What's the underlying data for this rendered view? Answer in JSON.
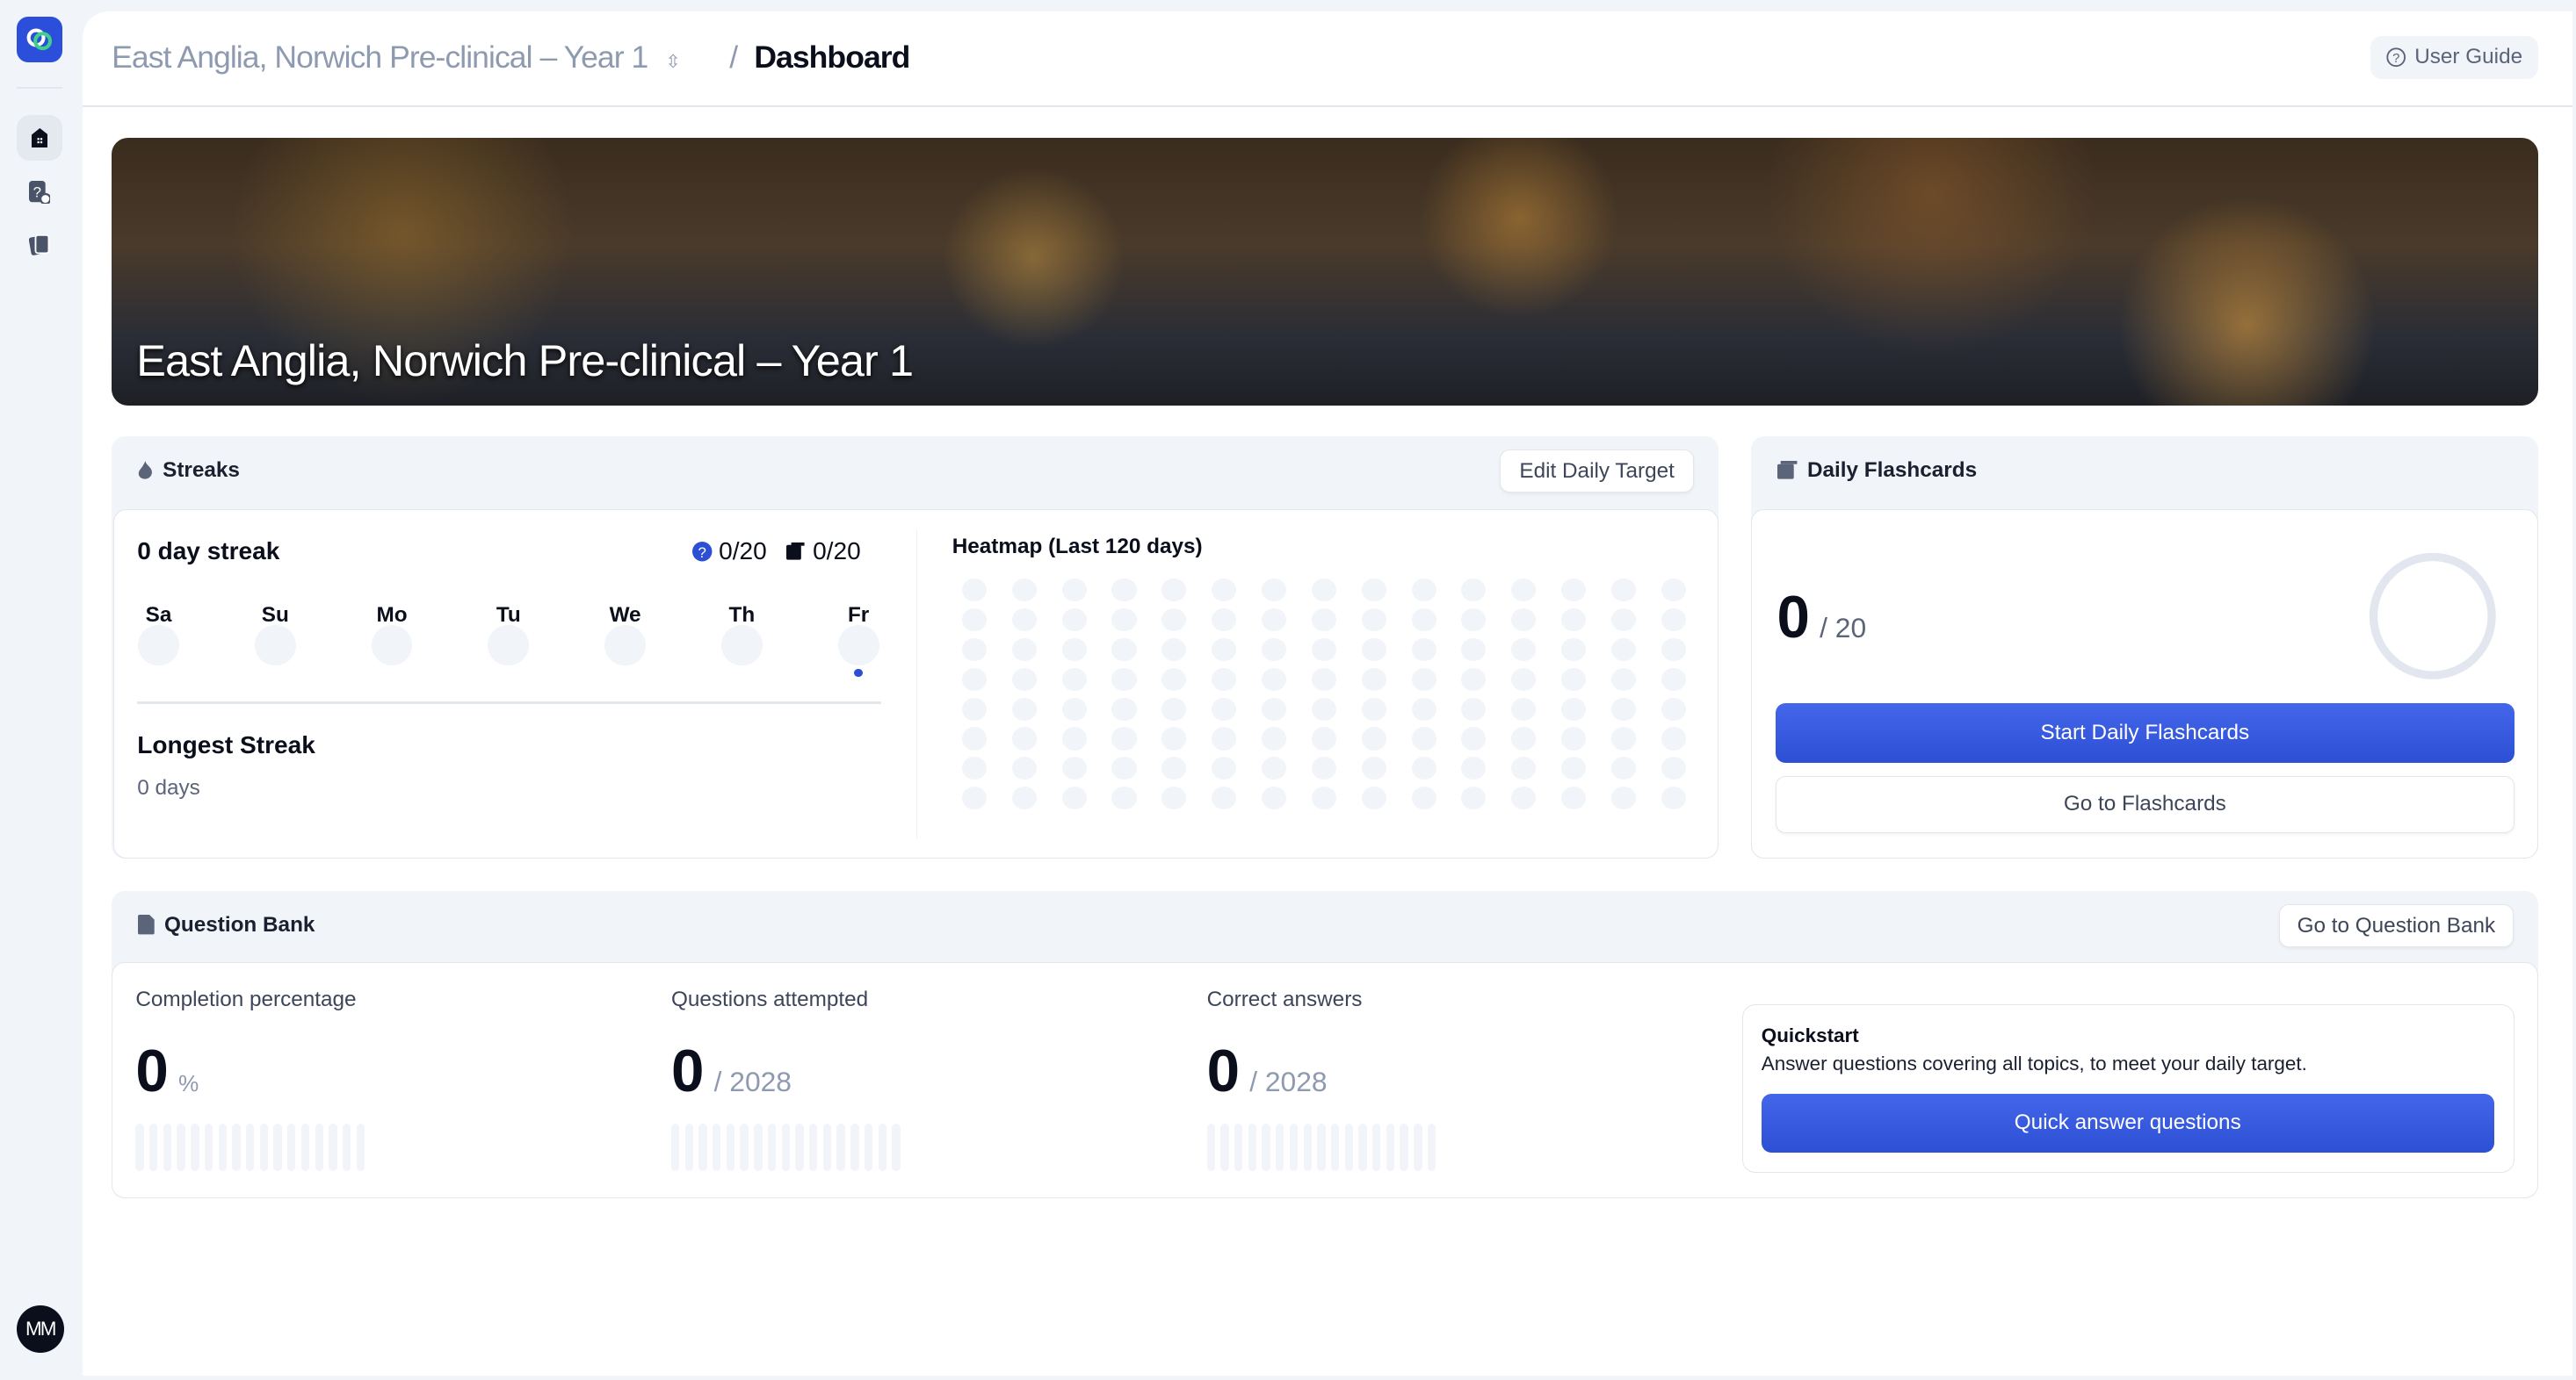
{
  "sidebar": {
    "logo": "app-logo",
    "items": [
      {
        "name": "home",
        "icon": "home-icon",
        "active": true
      },
      {
        "name": "question-bank",
        "icon": "question-icon"
      },
      {
        "name": "flashcards",
        "icon": "cards-icon"
      }
    ],
    "avatar": "MM"
  },
  "header": {
    "breadcrumb_course": "East Anglia, Norwich Pre-clinical – Year 1",
    "separator": "/",
    "current": "Dashboard",
    "user_guide": "User Guide"
  },
  "banner": {
    "title": "East Anglia, Norwich Pre-clinical – Year 1"
  },
  "streaks": {
    "title": "Streaks",
    "edit_target": "Edit Daily Target",
    "streak_text": "0 day streak",
    "questions_count": "0/20",
    "flashcards_count": "0/20",
    "days": [
      {
        "label": "Sa"
      },
      {
        "label": "Su"
      },
      {
        "label": "Mo"
      },
      {
        "label": "Tu"
      },
      {
        "label": "We"
      },
      {
        "label": "Th"
      },
      {
        "label": "Fr",
        "today": true
      }
    ],
    "longest_label": "Longest Streak",
    "longest_value": "0 days",
    "heatmap_title": "Heatmap (Last 120 days)",
    "heatmap_days": 120,
    "heatmap_active": 0
  },
  "flashcards": {
    "title": "Daily Flashcards",
    "done": "0",
    "target": "/ 20",
    "progress": 0,
    "start": "Start Daily Flashcards",
    "goto": "Go to Flashcards"
  },
  "question_bank": {
    "title": "Question Bank",
    "goto": "Go to Question Bank",
    "stats": [
      {
        "label": "Completion percentage",
        "value": "0",
        "suffix": "%",
        "progress": 0
      },
      {
        "label": "Questions attempted",
        "value": "0",
        "suffix": "/ 2028",
        "progress": 0
      },
      {
        "label": "Correct answers",
        "value": "0",
        "suffix": "/ 2028",
        "progress": 0
      }
    ],
    "quickstart": {
      "title": "Quickstart",
      "text": "Answer questions covering all topics, to meet your daily target.",
      "button": "Quick answer questions"
    }
  },
  "colors": {
    "accent": "#2d4fd4",
    "muted": "#f1f4f8"
  }
}
